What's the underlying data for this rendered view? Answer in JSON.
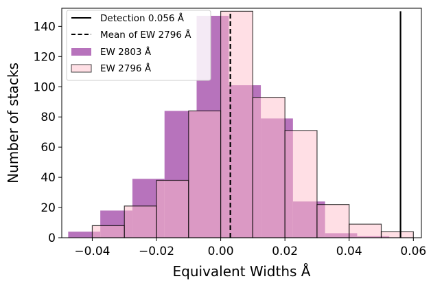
{
  "chart_data": {
    "type": "bar",
    "xlabel": "Equivalent Widths Å",
    "ylabel": "Number of stacks",
    "xlim": [
      -0.0495,
      0.0625
    ],
    "ylim": [
      0,
      152
    ],
    "xticks": [
      -0.04,
      -0.02,
      0.0,
      0.02,
      0.04,
      0.06
    ],
    "xtick_labels": [
      "−0.04",
      "−0.02",
      "0.00",
      "0.02",
      "0.04",
      "0.06"
    ],
    "yticks": [
      0,
      20,
      40,
      60,
      80,
      100,
      120,
      140
    ],
    "ytick_labels": [
      "0",
      "20",
      "40",
      "60",
      "80",
      "100",
      "120",
      "140"
    ],
    "series": [
      {
        "name": "EW 2803 Å",
        "color": "#b36bb8",
        "bins": [
          {
            "x0": -0.0475,
            "x1": -0.0375,
            "value": 4
          },
          {
            "x0": -0.0375,
            "x1": -0.0275,
            "value": 18
          },
          {
            "x0": -0.0275,
            "x1": -0.0175,
            "value": 39
          },
          {
            "x0": -0.0175,
            "x1": -0.0075,
            "value": 84
          },
          {
            "x0": -0.0075,
            "x1": 0.0025,
            "value": 147
          },
          {
            "x0": 0.0025,
            "x1": 0.0125,
            "value": 101
          },
          {
            "x0": 0.0125,
            "x1": 0.0225,
            "value": 79
          },
          {
            "x0": 0.0225,
            "x1": 0.0325,
            "value": 24
          },
          {
            "x0": 0.0325,
            "x1": 0.0425,
            "value": 3
          },
          {
            "x0": 0.0425,
            "x1": 0.0525,
            "value": 1
          }
        ]
      },
      {
        "name": "EW 2796 Å",
        "color": "#ffc0cb",
        "bins": [
          {
            "x0": -0.04,
            "x1": -0.03,
            "value": 8
          },
          {
            "x0": -0.03,
            "x1": -0.02,
            "value": 21
          },
          {
            "x0": -0.02,
            "x1": -0.01,
            "value": 38
          },
          {
            "x0": -0.01,
            "x1": 0.0,
            "value": 84
          },
          {
            "x0": 0.0,
            "x1": 0.01,
            "value": 150
          },
          {
            "x0": 0.01,
            "x1": 0.02,
            "value": 93
          },
          {
            "x0": 0.02,
            "x1": 0.03,
            "value": 71
          },
          {
            "x0": 0.03,
            "x1": 0.04,
            "value": 22
          },
          {
            "x0": 0.04,
            "x1": 0.05,
            "value": 9
          },
          {
            "x0": 0.05,
            "x1": 0.06,
            "value": 4
          }
        ]
      }
    ],
    "lines": [
      {
        "name": "Detection 0.056 Å",
        "x": 0.056,
        "y0": 0,
        "y1": 150,
        "style": "solid",
        "color": "#000000"
      },
      {
        "name": "Mean of EW 2796 Å",
        "x": 0.003,
        "y0": 0,
        "y1": 150,
        "style": "dashed",
        "color": "#000000"
      }
    ],
    "legend": {
      "placement": "top-left",
      "entries": [
        "Detection 0.056 Å",
        "Mean of EW 2796 Å",
        "EW 2803 Å",
        "EW 2796 Å"
      ]
    },
    "grid": false
  }
}
